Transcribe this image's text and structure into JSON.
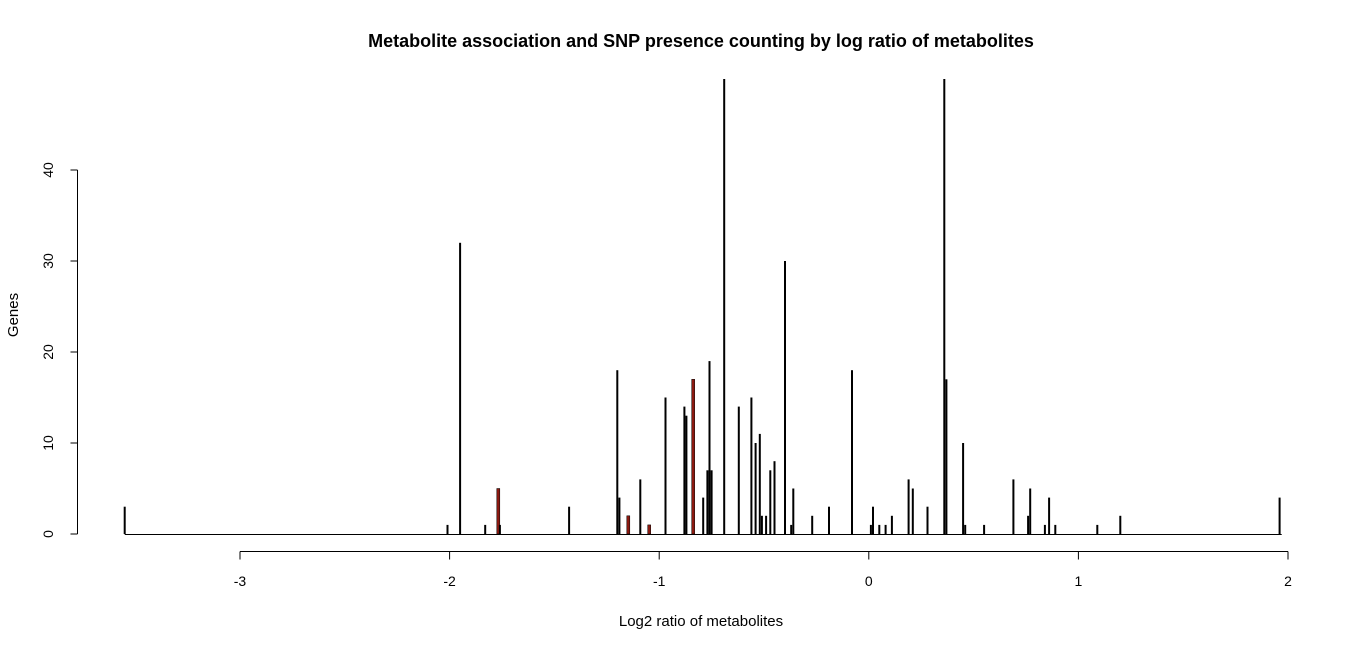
{
  "chart_data": {
    "type": "bar",
    "title": "Metabolite association and SNP presence counting by log ratio of metabolites",
    "xlabel": "Log2 ratio of metabolites",
    "ylabel": "Genes",
    "xlim": [
      -3.55,
      1.97
    ],
    "ylim": [
      0,
      50
    ],
    "x_ticks": [
      -3,
      -2,
      -1,
      0,
      1,
      2
    ],
    "y_ticks": [
      0,
      10,
      20,
      30,
      40
    ],
    "grid": false,
    "legend": "none",
    "colors": {
      "default": "#000000",
      "highlight": "#8b1a10"
    },
    "series": [
      {
        "values": [
          {
            "x": -3.55,
            "y": 3
          },
          {
            "x": -2.01,
            "y": 1
          },
          {
            "x": -1.95,
            "y": 32
          },
          {
            "x": -1.83,
            "y": 1
          },
          {
            "x": -1.77,
            "y": 5,
            "highlight": true
          },
          {
            "x": -1.76,
            "y": 1
          },
          {
            "x": -1.43,
            "y": 3
          },
          {
            "x": -1.2,
            "y": 18
          },
          {
            "x": -1.19,
            "y": 4
          },
          {
            "x": -1.15,
            "y": 2,
            "highlight": true
          },
          {
            "x": -1.09,
            "y": 6
          },
          {
            "x": -1.05,
            "y": 1,
            "highlight": true
          },
          {
            "x": -0.97,
            "y": 15
          },
          {
            "x": -0.88,
            "y": 14
          },
          {
            "x": -0.87,
            "y": 13
          },
          {
            "x": -0.84,
            "y": 17,
            "highlight": true
          },
          {
            "x": -0.79,
            "y": 4
          },
          {
            "x": -0.77,
            "y": 7
          },
          {
            "x": -0.76,
            "y": 19
          },
          {
            "x": -0.75,
            "y": 7
          },
          {
            "x": -0.69,
            "y": 50
          },
          {
            "x": -0.62,
            "y": 14
          },
          {
            "x": -0.56,
            "y": 15
          },
          {
            "x": -0.54,
            "y": 10
          },
          {
            "x": -0.52,
            "y": 11
          },
          {
            "x": -0.51,
            "y": 2
          },
          {
            "x": -0.49,
            "y": 2
          },
          {
            "x": -0.47,
            "y": 7
          },
          {
            "x": -0.45,
            "y": 8
          },
          {
            "x": -0.4,
            "y": 30
          },
          {
            "x": -0.37,
            "y": 1
          },
          {
            "x": -0.36,
            "y": 5
          },
          {
            "x": -0.27,
            "y": 2
          },
          {
            "x": -0.19,
            "y": 3
          },
          {
            "x": -0.08,
            "y": 18
          },
          {
            "x": 0.01,
            "y": 1
          },
          {
            "x": 0.02,
            "y": 3
          },
          {
            "x": 0.05,
            "y": 1
          },
          {
            "x": 0.08,
            "y": 1
          },
          {
            "x": 0.11,
            "y": 2
          },
          {
            "x": 0.19,
            "y": 6
          },
          {
            "x": 0.21,
            "y": 5
          },
          {
            "x": 0.28,
            "y": 3
          },
          {
            "x": 0.36,
            "y": 50
          },
          {
            "x": 0.37,
            "y": 17
          },
          {
            "x": 0.45,
            "y": 10
          },
          {
            "x": 0.46,
            "y": 1
          },
          {
            "x": 0.55,
            "y": 1
          },
          {
            "x": 0.69,
            "y": 6
          },
          {
            "x": 0.76,
            "y": 2
          },
          {
            "x": 0.77,
            "y": 5
          },
          {
            "x": 0.84,
            "y": 1
          },
          {
            "x": 0.86,
            "y": 4
          },
          {
            "x": 0.89,
            "y": 1
          },
          {
            "x": 1.09,
            "y": 1
          },
          {
            "x": 1.2,
            "y": 2
          },
          {
            "x": 1.96,
            "y": 4
          }
        ]
      }
    ]
  }
}
